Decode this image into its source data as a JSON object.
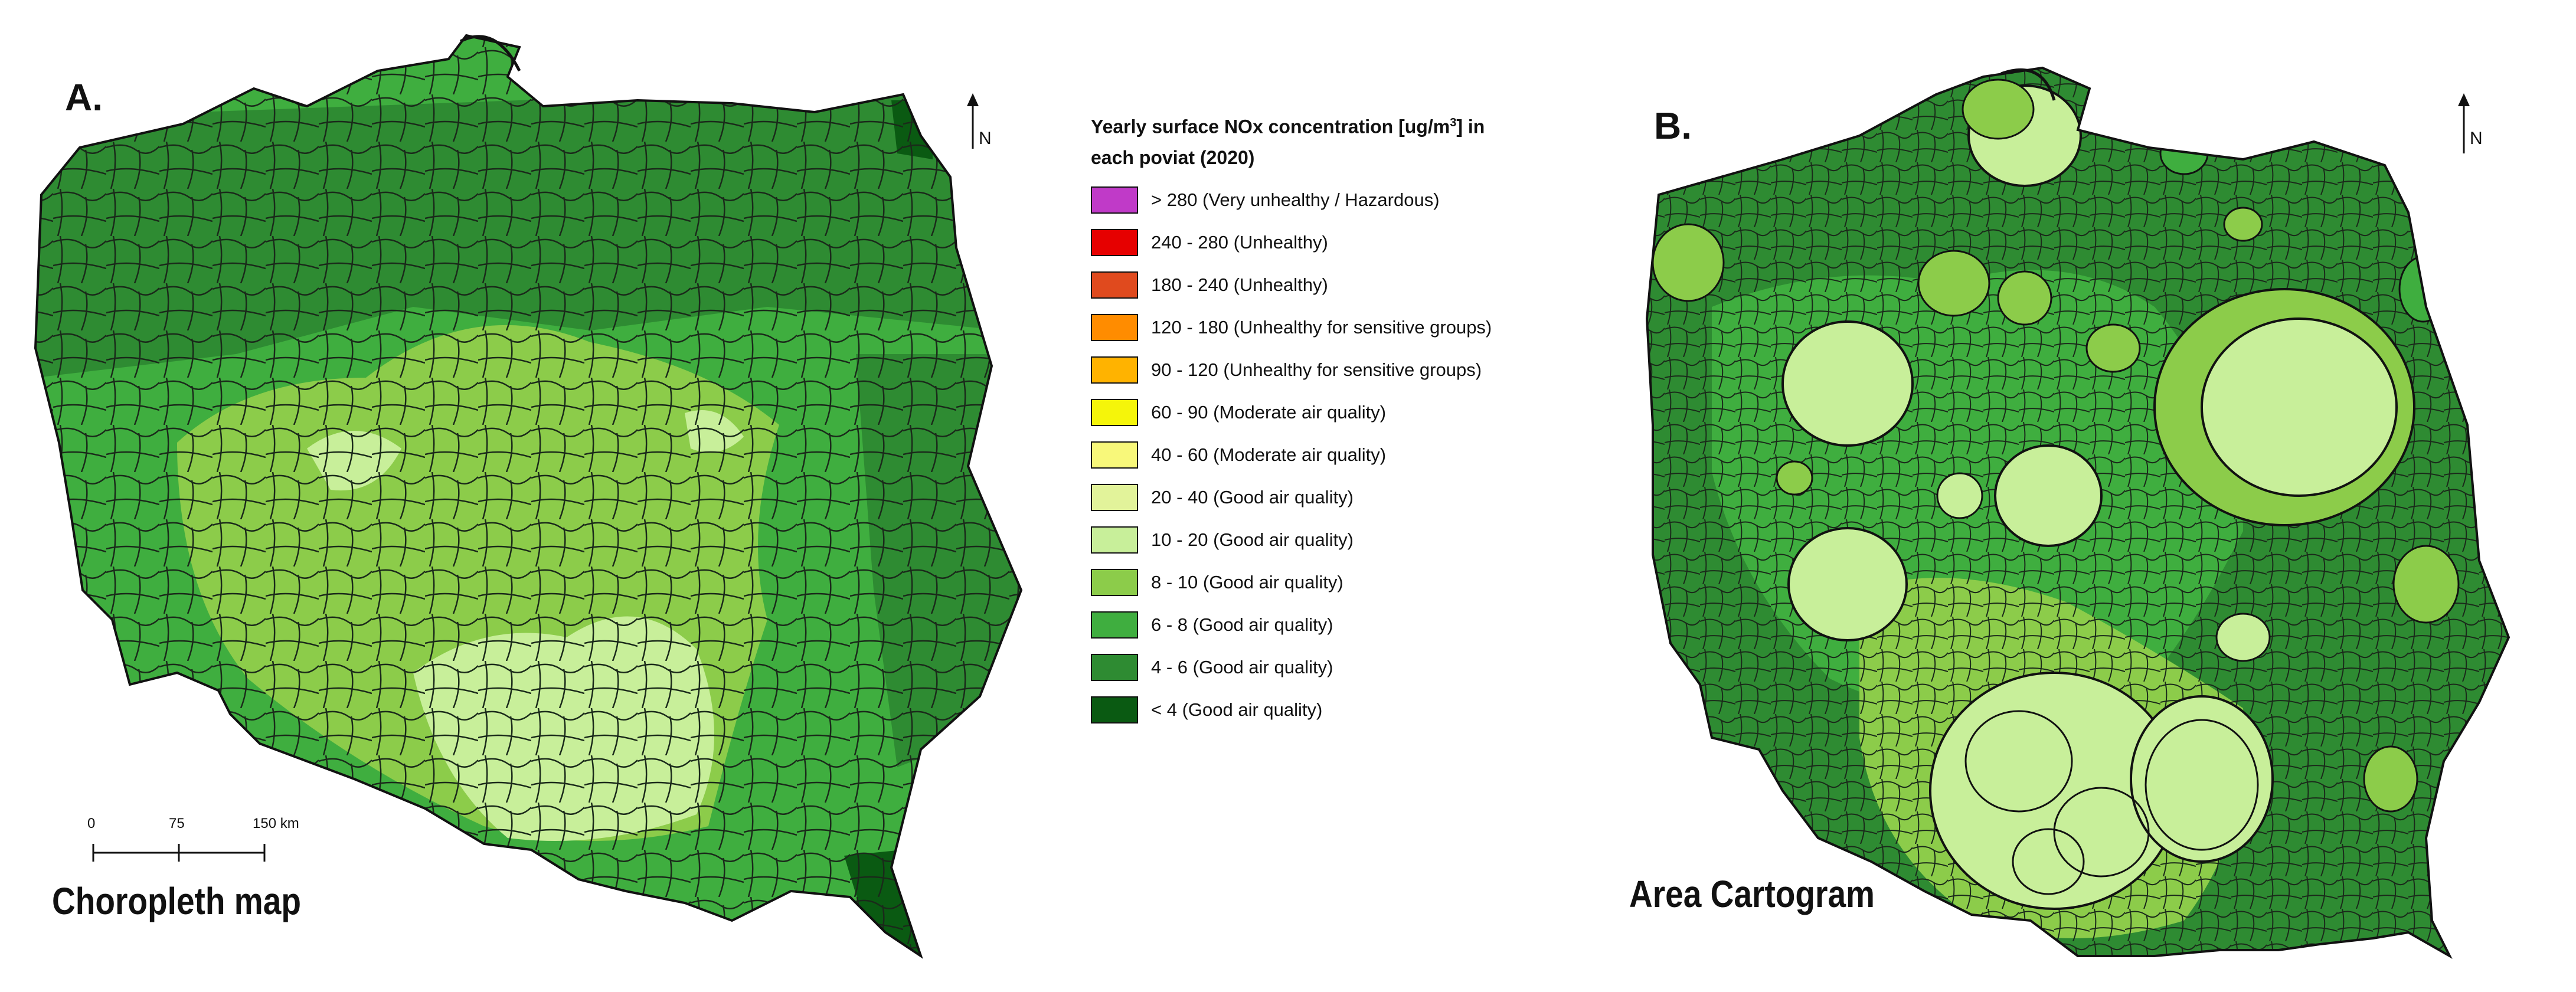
{
  "panel_a": {
    "letter": "A.",
    "title": "Choropleth map",
    "north_label": "N",
    "scale_labels": [
      "0",
      "75",
      "150 km"
    ]
  },
  "panel_b": {
    "letter": "B.",
    "title": "Area Cartogram",
    "north_label": "N"
  },
  "legend": {
    "title_prefix": "Yearly surface NOx concentration [ug/m",
    "title_sup": "3",
    "title_suffix": "] in each poviat (2020)",
    "items": [
      {
        "label": "> 280 (Very unhealthy / Hazardous)",
        "color": "#c03ac8"
      },
      {
        "label": "240 - 280 (Unhealthy)",
        "color": "#e60000"
      },
      {
        "label": "180 - 240 (Unhealthy)",
        "color": "#e04a1e"
      },
      {
        "label": "120 - 180 (Unhealthy for sensitive groups)",
        "color": "#ff8c00"
      },
      {
        "label": "90 - 120 (Unhealthy for sensitive groups)",
        "color": "#ffb300"
      },
      {
        "label": "60 - 90 (Moderate air quality)",
        "color": "#f5f50a"
      },
      {
        "label": "40 - 60 (Moderate air quality)",
        "color": "#f8f87a"
      },
      {
        "label": "20 - 40 (Good air quality)",
        "color": "#e2f39a"
      },
      {
        "label": "10 - 20 (Good air quality)",
        "color": "#c8ef9a"
      },
      {
        "label": "8 - 10 (Good air quality)",
        "color": "#8ccc4a"
      },
      {
        "label": "6 - 8 (Good air quality)",
        "color": "#3fae3f"
      },
      {
        "label": "4 - 6 (Good air quality)",
        "color": "#2e8b32"
      },
      {
        "label": "< 4 (Good air quality)",
        "color": "#0a5a12"
      }
    ]
  }
}
